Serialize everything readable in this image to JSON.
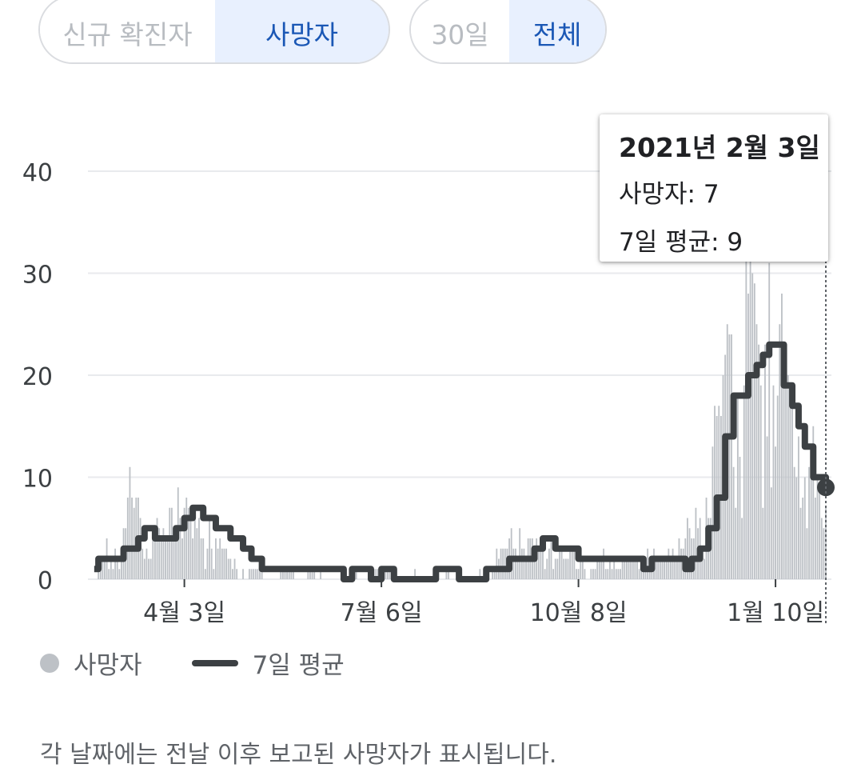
{
  "metric_toggle": {
    "options": [
      "신규 확진자",
      "사망자"
    ],
    "selected": "사망자"
  },
  "range_toggle": {
    "options": [
      "30일",
      "전체"
    ],
    "selected": "전체"
  },
  "tooltip": {
    "date": "2021년 2월 3일",
    "deaths_label": "사망자: 7",
    "avg_label": "7일 평균: 9"
  },
  "legend": {
    "bars": "사망자",
    "line": "7일 평균"
  },
  "footer": "각 날짜에는 전날 이후 보고된 사망자가 표시됩니다.",
  "colors": {
    "bar": "#bdc1c6",
    "line": "#3c4043",
    "accent": "#1a57b5",
    "grid": "#e8eaed"
  },
  "chart_data": {
    "type": "bar",
    "title": "",
    "xlabel": "",
    "ylabel": "",
    "ylim": [
      0,
      40
    ],
    "yticks": [
      0,
      10,
      20,
      30,
      40
    ],
    "xticks": [
      {
        "label": "4월 3일",
        "x": "2020-04-03"
      },
      {
        "label": "7월 6일",
        "x": "2020-07-06"
      },
      {
        "label": "10월 8일",
        "x": "2020-10-08"
      },
      {
        "label": "1월 10일",
        "x": "2021-01-10"
      }
    ],
    "x_range": [
      "2020-02-17",
      "2021-02-03"
    ],
    "grid": true,
    "legend_position": "bottom-left",
    "series": [
      {
        "name": "사망자",
        "type": "bar",
        "points": [
          [
            "2020-02-20",
            0
          ],
          [
            "2020-02-22",
            1
          ],
          [
            "2020-02-24",
            2
          ],
          [
            "2020-02-26",
            4
          ],
          [
            "2020-03-01",
            3
          ],
          [
            "2020-03-05",
            5
          ],
          [
            "2020-03-08",
            11
          ],
          [
            "2020-03-10",
            7
          ],
          [
            "2020-03-13",
            6
          ],
          [
            "2020-03-16",
            3
          ],
          [
            "2020-03-19",
            4
          ],
          [
            "2020-03-22",
            5
          ],
          [
            "2020-03-25",
            4
          ],
          [
            "2020-03-28",
            7
          ],
          [
            "2020-03-31",
            9
          ],
          [
            "2020-04-03",
            7
          ],
          [
            "2020-04-06",
            6
          ],
          [
            "2020-04-09",
            5
          ],
          [
            "2020-04-12",
            4
          ],
          [
            "2020-04-15",
            6
          ],
          [
            "2020-04-18",
            4
          ],
          [
            "2020-04-21",
            3
          ],
          [
            "2020-04-24",
            2
          ],
          [
            "2020-04-27",
            2
          ],
          [
            "2020-05-01",
            1
          ],
          [
            "2020-05-10",
            1
          ],
          [
            "2020-05-20",
            1
          ],
          [
            "2020-06-01",
            1
          ],
          [
            "2020-06-10",
            0
          ],
          [
            "2020-06-20",
            0
          ],
          [
            "2020-07-01",
            1
          ],
          [
            "2020-07-10",
            1
          ],
          [
            "2020-07-20",
            0
          ],
          [
            "2020-08-01",
            1
          ],
          [
            "2020-08-10",
            0
          ],
          [
            "2020-08-20",
            0
          ],
          [
            "2020-08-25",
            1
          ],
          [
            "2020-09-01",
            3
          ],
          [
            "2020-09-05",
            4
          ],
          [
            "2020-09-10",
            5
          ],
          [
            "2020-09-15",
            4
          ],
          [
            "2020-09-20",
            3
          ],
          [
            "2020-09-25",
            4
          ],
          [
            "2020-10-01",
            2
          ],
          [
            "2020-10-05",
            3
          ],
          [
            "2020-10-10",
            2
          ],
          [
            "2020-10-15",
            1
          ],
          [
            "2020-10-20",
            3
          ],
          [
            "2020-10-25",
            2
          ],
          [
            "2020-11-01",
            2
          ],
          [
            "2020-11-05",
            2
          ],
          [
            "2020-11-10",
            3
          ],
          [
            "2020-11-15",
            2
          ],
          [
            "2020-11-20",
            3
          ],
          [
            "2020-11-25",
            4
          ],
          [
            "2020-11-30",
            5
          ],
          [
            "2020-12-05",
            6
          ],
          [
            "2020-12-08",
            8
          ],
          [
            "2020-12-11",
            13
          ],
          [
            "2020-12-14",
            17
          ],
          [
            "2020-12-17",
            22
          ],
          [
            "2020-12-20",
            24
          ],
          [
            "2020-12-23",
            18
          ],
          [
            "2020-12-26",
            19
          ],
          [
            "2020-12-29",
            40
          ],
          [
            "2021-01-01",
            25
          ],
          [
            "2021-01-03",
            19
          ],
          [
            "2021-01-05",
            23
          ],
          [
            "2021-01-07",
            31
          ],
          [
            "2021-01-09",
            19
          ],
          [
            "2021-01-12",
            25
          ],
          [
            "2021-01-15",
            20
          ],
          [
            "2021-01-18",
            17
          ],
          [
            "2021-01-21",
            14
          ],
          [
            "2021-01-24",
            10
          ],
          [
            "2021-01-27",
            13
          ],
          [
            "2021-01-30",
            10
          ],
          [
            "2021-02-01",
            6
          ],
          [
            "2021-02-03",
            7
          ]
        ]
      },
      {
        "name": "7일 평균",
        "type": "line",
        "points": [
          [
            "2020-02-20",
            1
          ],
          [
            "2020-02-22",
            2
          ],
          [
            "2020-03-05",
            3
          ],
          [
            "2020-03-12",
            4
          ],
          [
            "2020-03-15",
            5
          ],
          [
            "2020-03-20",
            4
          ],
          [
            "2020-03-30",
            5
          ],
          [
            "2020-04-03",
            6
          ],
          [
            "2020-04-07",
            7
          ],
          [
            "2020-04-12",
            6
          ],
          [
            "2020-04-18",
            5
          ],
          [
            "2020-04-25",
            4
          ],
          [
            "2020-05-01",
            3
          ],
          [
            "2020-05-05",
            2
          ],
          [
            "2020-05-10",
            1
          ],
          [
            "2020-06-15",
            1
          ],
          [
            "2020-06-18",
            0
          ],
          [
            "2020-06-22",
            1
          ],
          [
            "2020-07-01",
            0
          ],
          [
            "2020-07-06",
            1
          ],
          [
            "2020-07-12",
            0
          ],
          [
            "2020-08-01",
            1
          ],
          [
            "2020-08-12",
            0
          ],
          [
            "2020-08-25",
            1
          ],
          [
            "2020-09-03",
            1
          ],
          [
            "2020-09-05",
            2
          ],
          [
            "2020-09-15",
            2
          ],
          [
            "2020-09-17",
            3
          ],
          [
            "2020-09-21",
            4
          ],
          [
            "2020-09-27",
            3
          ],
          [
            "2020-10-04",
            3
          ],
          [
            "2020-10-08",
            2
          ],
          [
            "2020-11-05",
            2
          ],
          [
            "2020-11-08",
            1
          ],
          [
            "2020-11-12",
            2
          ],
          [
            "2020-11-25",
            2
          ],
          [
            "2020-11-28",
            1
          ],
          [
            "2020-12-01",
            2
          ],
          [
            "2020-12-05",
            3
          ],
          [
            "2020-12-09",
            5
          ],
          [
            "2020-12-13",
            8
          ],
          [
            "2020-12-17",
            14
          ],
          [
            "2020-12-21",
            18
          ],
          [
            "2020-12-25",
            18
          ],
          [
            "2020-12-28",
            20
          ],
          [
            "2021-01-01",
            21
          ],
          [
            "2021-01-04",
            22
          ],
          [
            "2021-01-07",
            23
          ],
          [
            "2021-01-10",
            23
          ],
          [
            "2021-01-14",
            19
          ],
          [
            "2021-01-18",
            17
          ],
          [
            "2021-01-21",
            15
          ],
          [
            "2021-01-24",
            13
          ],
          [
            "2021-01-28",
            10
          ],
          [
            "2021-01-31",
            10
          ],
          [
            "2021-02-03",
            9
          ]
        ]
      }
    ]
  }
}
